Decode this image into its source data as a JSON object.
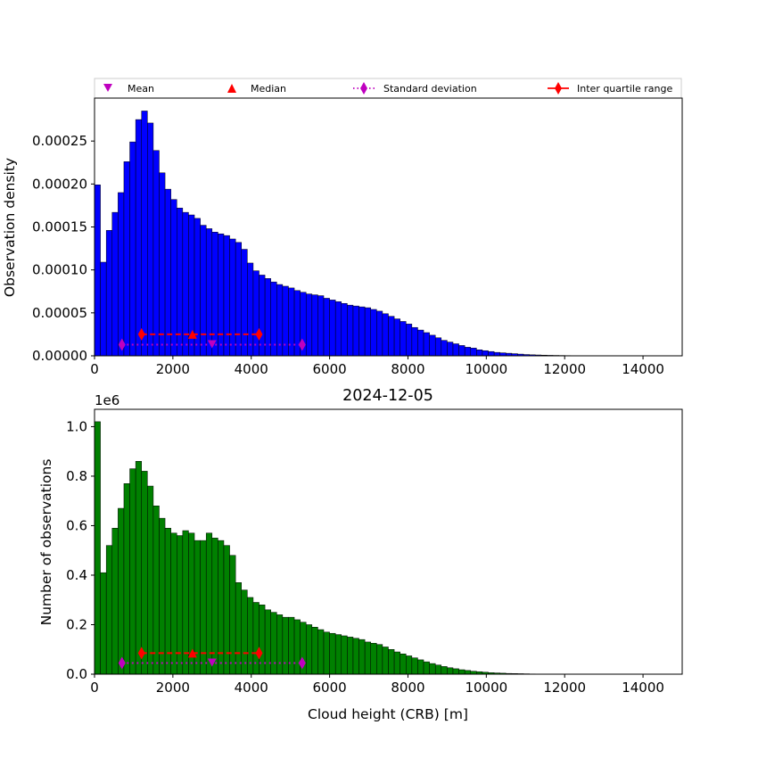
{
  "chart_data": [
    {
      "type": "bar",
      "ylabel": "Observation density",
      "xlabel": "",
      "title": "",
      "xlim": [
        0,
        15000
      ],
      "ylim": [
        0,
        0.0003
      ],
      "bin_width": 150,
      "bar_color": "#0000ff",
      "edge_color": "#000000",
      "x_ticks": [
        0,
        2000,
        4000,
        6000,
        8000,
        10000,
        12000,
        14000
      ],
      "x_tick_labels": [
        "0",
        "2000",
        "4000",
        "6000",
        "8000",
        "10000",
        "12000",
        "14000"
      ],
      "y_ticks": [
        0,
        5e-05,
        0.0001,
        0.00015,
        0.0002,
        0.00025
      ],
      "y_tick_labels": [
        "0.00000",
        "0.00005",
        "0.00010",
        "0.00015",
        "0.00020",
        "0.00025"
      ],
      "values": [
        0.000199,
        0.000109,
        0.000146,
        0.000167,
        0.00019,
        0.000226,
        0.000249,
        0.000275,
        0.000285,
        0.000271,
        0.000239,
        0.000213,
        0.000194,
        0.000182,
        0.000172,
        0.000167,
        0.000164,
        0.00016,
        0.000152,
        0.000148,
        0.000144,
        0.000142,
        0.00014,
        0.000136,
        0.000132,
        0.000124,
        0.000108,
        9.9e-05,
        9.4e-05,
        9e-05,
        8.6e-05,
        8.3e-05,
        8.1e-05,
        7.9e-05,
        7.6e-05,
        7.4e-05,
        7.2e-05,
        7.1e-05,
        7e-05,
        6.7e-05,
        6.5e-05,
        6.3e-05,
        6.1e-05,
        5.9e-05,
        5.8e-05,
        5.7e-05,
        5.6e-05,
        5.4e-05,
        5.2e-05,
        4.9e-05,
        4.6e-05,
        4.3e-05,
        4e-05,
        3.7e-05,
        3.3e-05,
        3e-05,
        2.7e-05,
        2.4e-05,
        2.1e-05,
        1.8e-05,
        1.6e-05,
        1.4e-05,
        1.2e-05,
        1e-05,
        9e-06,
        7e-06,
        6e-06,
        5e-06,
        4e-06,
        3.5e-06,
        3e-06,
        2.5e-06,
        2e-06,
        1.5e-06,
        1.2e-06,
        1e-06,
        8e-07,
        6e-07,
        5e-07,
        4e-07,
        3e-07,
        2.5e-07,
        2e-07,
        1.5e-07,
        1e-07,
        8e-08,
        6e-08,
        5e-08,
        4e-08,
        3e-08,
        0,
        0,
        0,
        0,
        0,
        0,
        0,
        0,
        0,
        0
      ],
      "stats": {
        "mean": 3000,
        "median": 2500,
        "sd_low": 700,
        "sd_high": 5300,
        "iqr_low": 1200,
        "iqr_high": 4200,
        "y_median_iqr": 2.5e-05,
        "y_mean_sd": 1.3e-05
      }
    },
    {
      "type": "bar",
      "title": "2024-12-05",
      "ylabel": "Number of observations",
      "xlabel": "Cloud height (CRB) [m]",
      "xlim": [
        0,
        15000
      ],
      "ylim": [
        0,
        1.07
      ],
      "y_scale_label": "1e6",
      "bin_width": 150,
      "bar_color": "#008000",
      "edge_color": "#000000",
      "x_ticks": [
        0,
        2000,
        4000,
        6000,
        8000,
        10000,
        12000,
        14000
      ],
      "x_tick_labels": [
        "0",
        "2000",
        "4000",
        "6000",
        "8000",
        "10000",
        "12000",
        "14000"
      ],
      "y_ticks": [
        0,
        0.2,
        0.4,
        0.6,
        0.8,
        1.0
      ],
      "y_tick_labels": [
        "0.0",
        "0.2",
        "0.4",
        "0.6",
        "0.8",
        "1.0"
      ],
      "values": [
        1.02,
        0.41,
        0.52,
        0.59,
        0.67,
        0.77,
        0.83,
        0.86,
        0.82,
        0.76,
        0.68,
        0.63,
        0.59,
        0.57,
        0.56,
        0.58,
        0.57,
        0.54,
        0.54,
        0.57,
        0.55,
        0.54,
        0.52,
        0.48,
        0.37,
        0.34,
        0.31,
        0.29,
        0.28,
        0.26,
        0.25,
        0.24,
        0.23,
        0.23,
        0.22,
        0.21,
        0.2,
        0.19,
        0.18,
        0.17,
        0.165,
        0.16,
        0.155,
        0.15,
        0.145,
        0.14,
        0.13,
        0.125,
        0.12,
        0.11,
        0.1,
        0.09,
        0.082,
        0.074,
        0.066,
        0.058,
        0.05,
        0.043,
        0.037,
        0.031,
        0.026,
        0.022,
        0.018,
        0.015,
        0.012,
        0.01,
        0.008,
        0.006,
        0.005,
        0.004,
        0.003,
        0.0025,
        0.002,
        0.0015,
        0.001,
        0.0008,
        0.0006,
        0.0005,
        0.0004,
        0.0003,
        0.0002,
        0.00015,
        0.0001,
        8e-05,
        6e-05,
        5e-05,
        4e-05,
        3e-05,
        0,
        0,
        0,
        0,
        0,
        0,
        0,
        0,
        0,
        0,
        0,
        0
      ],
      "stats": {
        "mean": 3000,
        "median": 2500,
        "sd_low": 700,
        "sd_high": 5300,
        "iqr_low": 1200,
        "iqr_high": 4200,
        "y_median_iqr": 0.085,
        "y_mean_sd": 0.045
      }
    }
  ],
  "legend": {
    "placement": "top",
    "entries": [
      {
        "label": "Mean",
        "marker": "triangle-down",
        "color": "#bf00bf"
      },
      {
        "label": "Median",
        "marker": "triangle-up",
        "color": "#ff0000"
      },
      {
        "label": "Standard deviation",
        "marker": "thin-diamond",
        "color": "#bf00bf",
        "line": "dotted"
      },
      {
        "label": "Inter quartile range",
        "marker": "thin-diamond",
        "color": "#ff0000",
        "line": "solid"
      }
    ]
  }
}
